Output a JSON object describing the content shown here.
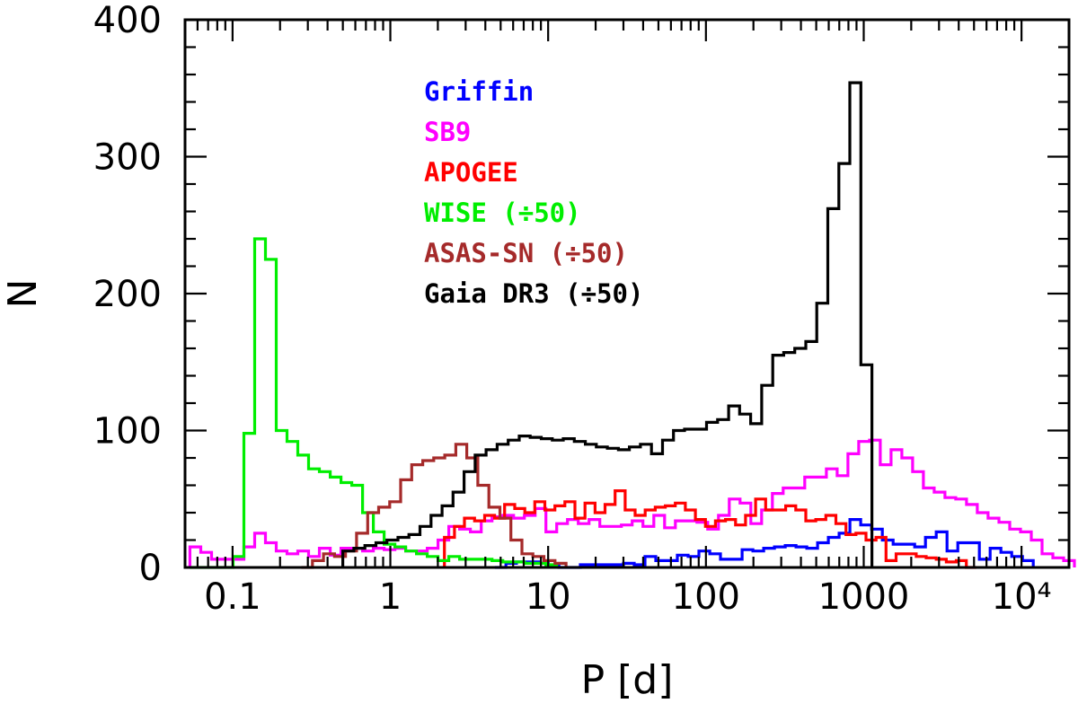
{
  "chart_data": {
    "type": "line",
    "style": "step-histogram",
    "xlabel": "P [d]",
    "ylabel": "N",
    "xscale": "log",
    "xlim": [
      0.05,
      20000
    ],
    "ylim": [
      0,
      400
    ],
    "x_ticks": [
      {
        "value": 0.1,
        "label": "0.1"
      },
      {
        "value": 1,
        "label": "1"
      },
      {
        "value": 10,
        "label": "10"
      },
      {
        "value": 100,
        "label": "100"
      },
      {
        "value": 1000,
        "label": "1000"
      },
      {
        "value": 10000,
        "label": "10⁴"
      }
    ],
    "y_ticks": [
      {
        "value": 0,
        "label": "0"
      },
      {
        "value": 100,
        "label": "100"
      },
      {
        "value": 200,
        "label": "200"
      },
      {
        "value": 300,
        "label": "300"
      },
      {
        "value": 400,
        "label": "400"
      }
    ],
    "legend_position": "top-left",
    "series": [
      {
        "name": "Griffin",
        "color": "#0000ff",
        "bins": [
          [
            4.6,
            0
          ],
          [
            5.4,
            3
          ],
          [
            6.3,
            4
          ],
          [
            7.4,
            4
          ],
          [
            8.7,
            3
          ],
          [
            10,
            1
          ],
          [
            11.7,
            0
          ],
          [
            13.7,
            0
          ],
          [
            16,
            2
          ],
          [
            18.7,
            2
          ],
          [
            21.9,
            2
          ],
          [
            25.6,
            2
          ],
          [
            30,
            3
          ],
          [
            35.1,
            2
          ],
          [
            41.1,
            8
          ],
          [
            48.1,
            5
          ],
          [
            56.3,
            5
          ],
          [
            65.9,
            9
          ],
          [
            77.1,
            8
          ],
          [
            90.3,
            12
          ],
          [
            105.7,
            10
          ],
          [
            123.7,
            6
          ],
          [
            144.8,
            6
          ],
          [
            169.5,
            13
          ],
          [
            198.4,
            12
          ],
          [
            232.2,
            14
          ],
          [
            271.8,
            15
          ],
          [
            318.1,
            16
          ],
          [
            372.4,
            15
          ],
          [
            435.8,
            14
          ],
          [
            510.1,
            18
          ],
          [
            597,
            22
          ],
          [
            698.8,
            25
          ],
          [
            817.9,
            35
          ],
          [
            957.3,
            31
          ],
          [
            1120.5,
            28
          ],
          [
            1311.5,
            20
          ],
          [
            1535,
            17
          ],
          [
            1796.6,
            17
          ],
          [
            2102.8,
            15
          ],
          [
            2461.3,
            22
          ],
          [
            2880.9,
            26
          ],
          [
            3371.9,
            12
          ],
          [
            3946.7,
            18
          ],
          [
            4619.5,
            18
          ],
          [
            5407,
            6
          ],
          [
            6328.6,
            14
          ],
          [
            7407.4,
            11
          ],
          [
            8670.1,
            8
          ],
          [
            10147.8,
            5
          ],
          [
            11877.5,
            0
          ]
        ],
        "end": 11877.5
      },
      {
        "name": "SB9",
        "color": "#ff00ff",
        "bins": [
          [
            0.0537,
            15
          ],
          [
            0.0629,
            11
          ],
          [
            0.0736,
            6
          ],
          [
            0.0861,
            6
          ],
          [
            0.1008,
            6
          ],
          [
            0.118,
            15
          ],
          [
            0.1381,
            25
          ],
          [
            0.1617,
            18
          ],
          [
            0.1892,
            12
          ],
          [
            0.2215,
            10
          ],
          [
            0.2592,
            12
          ],
          [
            0.3034,
            8
          ],
          [
            0.3551,
            14
          ],
          [
            0.4157,
            9
          ],
          [
            0.4865,
            14
          ],
          [
            0.5695,
            14
          ],
          [
            0.6665,
            12
          ],
          [
            0.7801,
            14
          ],
          [
            0.9131,
            13
          ],
          [
            1.0687,
            14
          ],
          [
            1.2509,
            12
          ],
          [
            1.4642,
            12
          ],
          [
            1.7138,
            14
          ],
          [
            2.0059,
            20
          ],
          [
            2.3478,
            30
          ],
          [
            2.748,
            28
          ],
          [
            3.2164,
            26
          ],
          [
            3.7646,
            34
          ],
          [
            4.4063,
            37
          ],
          [
            5.1574,
            38
          ],
          [
            6.0364,
            36
          ],
          [
            7.0653,
            38
          ],
          [
            8.2696,
            43
          ],
          [
            9.6791,
            26
          ],
          [
            11.329,
            32
          ],
          [
            13.26,
            35
          ],
          [
            15.52,
            32
          ],
          [
            18.166,
            35
          ],
          [
            21.262,
            30
          ],
          [
            24.886,
            30
          ],
          [
            29.128,
            31
          ],
          [
            34.093,
            34
          ],
          [
            39.904,
            30
          ],
          [
            46.706,
            38
          ],
          [
            54.667,
            29
          ],
          [
            63.985,
            34
          ],
          [
            74.891,
            34
          ],
          [
            87.656,
            33
          ],
          [
            102.6,
            28
          ],
          [
            120.09,
            38
          ],
          [
            140.56,
            50
          ],
          [
            164.52,
            47
          ],
          [
            192.56,
            32
          ],
          [
            225.38,
            42
          ],
          [
            263.8,
            54
          ],
          [
            308.76,
            58
          ],
          [
            361.39,
            58
          ],
          [
            422.99,
            66
          ],
          [
            495.09,
            66
          ],
          [
            579.47,
            72
          ],
          [
            678.24,
            67
          ],
          [
            793.85,
            83
          ],
          [
            929.16,
            92
          ],
          [
            1087.5,
            93
          ],
          [
            1272.9,
            75
          ],
          [
            1489.9,
            86
          ],
          [
            1743.8,
            80
          ],
          [
            2041.1,
            70
          ],
          [
            2389,
            58
          ],
          [
            2796.2,
            55
          ],
          [
            3272.8,
            51
          ],
          [
            3830.6,
            50
          ],
          [
            4483.6,
            46
          ],
          [
            5247.8,
            40
          ],
          [
            6142.3,
            36
          ],
          [
            7189.3,
            33
          ],
          [
            8414.7,
            28
          ],
          [
            9848.9,
            26
          ],
          [
            11527.6,
            20
          ],
          [
            13492.5,
            10
          ],
          [
            15792.2,
            7
          ],
          [
            18484,
            5
          ]
        ],
        "end": 21634.6
      },
      {
        "name": "APOGEE",
        "color": "#ff0000",
        "bins": [
          [
            2.2,
            22
          ],
          [
            2.55,
            30
          ],
          [
            2.95,
            36
          ],
          [
            3.42,
            34
          ],
          [
            3.96,
            38
          ],
          [
            4.58,
            36
          ],
          [
            5.3,
            46
          ],
          [
            6.14,
            43
          ],
          [
            7.11,
            40
          ],
          [
            8.23,
            48
          ],
          [
            9.53,
            42
          ],
          [
            11.03,
            45
          ],
          [
            12.77,
            48
          ],
          [
            14.79,
            36
          ],
          [
            17.12,
            47
          ],
          [
            19.82,
            40
          ],
          [
            22.94,
            46
          ],
          [
            26.56,
            56
          ],
          [
            30.75,
            42
          ],
          [
            35.6,
            38
          ],
          [
            41.22,
            42
          ],
          [
            47.72,
            44
          ],
          [
            55.25,
            45
          ],
          [
            63.96,
            47
          ],
          [
            74.05,
            42
          ],
          [
            85.73,
            35
          ],
          [
            99.25,
            30
          ],
          [
            114.9,
            34
          ],
          [
            133.02,
            35
          ],
          [
            154,
            31
          ],
          [
            178.29,
            38
          ],
          [
            206.41,
            50
          ],
          [
            238.96,
            42
          ],
          [
            276.65,
            42
          ],
          [
            320.29,
            45
          ],
          [
            370.8,
            42
          ],
          [
            429.28,
            34
          ],
          [
            496.99,
            35
          ],
          [
            575.38,
            38
          ],
          [
            666.13,
            32
          ],
          [
            771.19,
            24
          ],
          [
            892.83,
            25
          ],
          [
            1033.6,
            20
          ],
          [
            1196.7,
            22
          ],
          [
            1385.4,
            5
          ],
          [
            1603.9,
            10
          ],
          [
            1856.9,
            10
          ],
          [
            2149.8,
            8
          ],
          [
            2488.9,
            7
          ],
          [
            2881.4,
            6
          ],
          [
            3335.9,
            4
          ],
          [
            3862.1,
            5
          ],
          [
            4471.2,
            0
          ]
        ],
        "end": 5176.4
      },
      {
        "name": "WISE (÷50)",
        "color": "#00ee00",
        "bins": [
          [
            0.0537,
            0
          ],
          [
            0.0629,
            0
          ],
          [
            0.0736,
            0
          ],
          [
            0.0861,
            0
          ],
          [
            0.1008,
            8
          ],
          [
            0.118,
            98
          ],
          [
            0.1381,
            240
          ],
          [
            0.1617,
            225
          ],
          [
            0.1892,
            100
          ],
          [
            0.2215,
            92
          ],
          [
            0.2592,
            82
          ],
          [
            0.3034,
            72
          ],
          [
            0.3551,
            70
          ],
          [
            0.4157,
            66
          ],
          [
            0.4865,
            62
          ],
          [
            0.5695,
            60
          ],
          [
            0.6665,
            40
          ],
          [
            0.7801,
            26
          ],
          [
            0.9131,
            17
          ],
          [
            1.0687,
            15
          ],
          [
            1.2509,
            12
          ],
          [
            1.4642,
            10
          ],
          [
            1.7138,
            8
          ],
          [
            2.0059,
            5
          ],
          [
            2.3478,
            8
          ],
          [
            2.748,
            6
          ],
          [
            3.2164,
            6
          ],
          [
            3.7646,
            6
          ],
          [
            4.4063,
            5
          ],
          [
            5.1574,
            4
          ],
          [
            6.0364,
            4
          ],
          [
            7.0653,
            3
          ],
          [
            8.2696,
            3
          ],
          [
            9.6791,
            2
          ]
        ],
        "end": 11.329
      },
      {
        "name": "ASAS-SN (÷50)",
        "color": "#a52a2a",
        "bins": [
          [
            0.273,
            0
          ],
          [
            0.321,
            5
          ],
          [
            0.377,
            10
          ],
          [
            0.443,
            8
          ],
          [
            0.52,
            12
          ],
          [
            0.611,
            25
          ],
          [
            0.718,
            40
          ],
          [
            0.843,
            44
          ],
          [
            0.99,
            48
          ],
          [
            1.163,
            64
          ],
          [
            1.366,
            75
          ],
          [
            1.604,
            78
          ],
          [
            1.884,
            80
          ],
          [
            2.213,
            82
          ],
          [
            2.599,
            90
          ],
          [
            3.052,
            80
          ],
          [
            3.585,
            60
          ],
          [
            4.21,
            44
          ],
          [
            4.945,
            36
          ],
          [
            5.807,
            20
          ],
          [
            6.82,
            10
          ],
          [
            8.01,
            8
          ],
          [
            9.41,
            5
          ],
          [
            11.05,
            3
          ]
        ],
        "end": 12.98
      },
      {
        "name": "Gaia DR3 (÷50)",
        "color": "#000000",
        "bins": [
          [
            0.5,
            12
          ],
          [
            0.587,
            14
          ],
          [
            0.69,
            16
          ],
          [
            0.81,
            18
          ],
          [
            0.951,
            20
          ],
          [
            1.117,
            22
          ],
          [
            1.312,
            24
          ],
          [
            1.541,
            30
          ],
          [
            1.81,
            38
          ],
          [
            2.126,
            45
          ],
          [
            2.497,
            55
          ],
          [
            2.933,
            70
          ],
          [
            3.445,
            82
          ],
          [
            4.046,
            86
          ],
          [
            4.752,
            90
          ],
          [
            5.581,
            93
          ],
          [
            6.555,
            96
          ],
          [
            7.699,
            95
          ],
          [
            9.042,
            94
          ],
          [
            10.62,
            93
          ],
          [
            12.47,
            94
          ],
          [
            14.65,
            92
          ],
          [
            17.21,
            90
          ],
          [
            20.21,
            88
          ],
          [
            23.73,
            87
          ],
          [
            27.88,
            86
          ],
          [
            32.74,
            88
          ],
          [
            38.46,
            90
          ],
          [
            45.17,
            83
          ],
          [
            53.05,
            93
          ],
          [
            62.3,
            100
          ],
          [
            73.18,
            101
          ],
          [
            85.94,
            101
          ],
          [
            100.9,
            106
          ],
          [
            118.55,
            108
          ],
          [
            139.24,
            118
          ],
          [
            163.53,
            112
          ],
          [
            192.07,
            105
          ],
          [
            225.58,
            133
          ],
          [
            264.94,
            155
          ],
          [
            311.16,
            157
          ],
          [
            365.45,
            160
          ],
          [
            429.21,
            165
          ],
          [
            504.1,
            193
          ],
          [
            592.06,
            262
          ],
          [
            695.37,
            295
          ],
          [
            816.7,
            354
          ],
          [
            959.2,
            148
          ]
        ],
        "end": 1126.6
      }
    ]
  }
}
